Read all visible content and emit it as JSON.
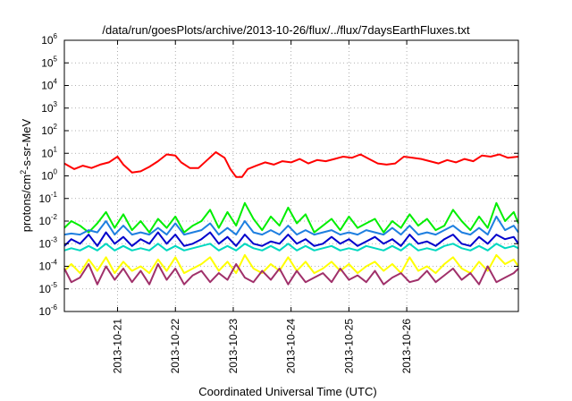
{
  "chart_data": {
    "type": "line",
    "title": "/data/run/goesPlots/archive/2013-10-26/flux/../flux/7daysEarthFluxes.txt",
    "xlabel": "Coordinated Universal Time (UTC)",
    "ylabel_parts": [
      "protons/cm",
      "2",
      "-s-sr-MeV"
    ],
    "y_scale": "log",
    "ylim": [
      -6,
      6
    ],
    "y_ticks": [
      {
        "base": "10",
        "exp": "6"
      },
      {
        "base": "10",
        "exp": "5"
      },
      {
        "base": "10",
        "exp": "4"
      },
      {
        "base": "10",
        "exp": "3"
      },
      {
        "base": "10",
        "exp": "2"
      },
      {
        "base": "10",
        "exp": "1"
      },
      {
        "base": "10",
        "exp": "0"
      },
      {
        "base": "10",
        "exp": "-1"
      },
      {
        "base": "10",
        "exp": "-2"
      },
      {
        "base": "10",
        "exp": "-3"
      },
      {
        "base": "10",
        "exp": "-4"
      },
      {
        "base": "10",
        "exp": "-5"
      },
      {
        "base": "10",
        "exp": "-6"
      }
    ],
    "x_range_days": [
      19.08,
      26.93
    ],
    "x_ticks": [
      "2013-10-21",
      "2013-10-22",
      "2013-10-23",
      "2013-10-24",
      "2013-10-25",
      "2013-10-26"
    ],
    "x_tick_days": [
      20.0,
      21.0,
      22.0,
      23.0,
      24.0,
      25.0
    ],
    "grid": true,
    "legend": "none",
    "series": [
      {
        "color": "#ff0000",
        "x_days": [
          19.08,
          19.25,
          19.4,
          19.55,
          19.7,
          19.85,
          20.0,
          20.1,
          20.25,
          20.4,
          20.55,
          20.7,
          20.85,
          21.0,
          21.1,
          21.25,
          21.4,
          21.55,
          21.7,
          21.85,
          21.95,
          22.05,
          22.15,
          22.25,
          22.4,
          22.55,
          22.7,
          22.85,
          23.0,
          23.15,
          23.3,
          23.45,
          23.6,
          23.75,
          23.9,
          24.05,
          24.2,
          24.35,
          24.5,
          24.65,
          24.8,
          24.95,
          25.1,
          25.25,
          25.4,
          25.55,
          25.7,
          25.85,
          26.0,
          26.15,
          26.3,
          26.45,
          26.6,
          26.75,
          26.93
        ],
        "log10_values": [
          0.55,
          0.3,
          0.45,
          0.35,
          0.5,
          0.6,
          0.85,
          0.5,
          0.15,
          0.2,
          0.4,
          0.65,
          0.95,
          0.9,
          0.6,
          0.35,
          0.35,
          0.7,
          1.05,
          0.8,
          0.3,
          -0.05,
          -0.05,
          0.3,
          0.45,
          0.6,
          0.5,
          0.65,
          0.6,
          0.75,
          0.55,
          0.7,
          0.65,
          0.75,
          0.85,
          0.8,
          0.95,
          0.75,
          0.55,
          0.5,
          0.55,
          0.85,
          0.8,
          0.75,
          0.65,
          0.55,
          0.7,
          0.6,
          0.75,
          0.65,
          0.9,
          0.85,
          0.95,
          0.8,
          0.85
        ]
      },
      {
        "color": "#00ee00",
        "x_days": [
          19.08,
          19.2,
          19.35,
          19.5,
          19.65,
          19.8,
          19.95,
          20.1,
          20.25,
          20.4,
          20.55,
          20.7,
          20.85,
          21.0,
          21.15,
          21.3,
          21.45,
          21.6,
          21.75,
          21.9,
          22.05,
          22.2,
          22.35,
          22.5,
          22.65,
          22.8,
          22.95,
          23.1,
          23.25,
          23.4,
          23.55,
          23.7,
          23.85,
          24.0,
          24.15,
          24.3,
          24.45,
          24.6,
          24.75,
          24.9,
          25.05,
          25.2,
          25.35,
          25.5,
          25.65,
          25.8,
          25.95,
          26.1,
          26.25,
          26.4,
          26.55,
          26.7,
          26.85,
          26.93
        ],
        "log10_values": [
          -2.3,
          -2.0,
          -2.2,
          -2.5,
          -2.1,
          -1.6,
          -2.3,
          -1.7,
          -2.4,
          -2.0,
          -2.5,
          -1.9,
          -2.3,
          -1.8,
          -2.5,
          -2.2,
          -2.0,
          -1.5,
          -2.3,
          -1.6,
          -2.2,
          -1.2,
          -1.9,
          -2.4,
          -1.8,
          -2.2,
          -1.4,
          -2.1,
          -1.7,
          -2.5,
          -2.2,
          -1.9,
          -2.4,
          -1.8,
          -2.3,
          -2.1,
          -1.9,
          -2.5,
          -2.0,
          -2.3,
          -1.7,
          -2.2,
          -1.9,
          -2.4,
          -2.2,
          -1.5,
          -2.0,
          -2.4,
          -1.8,
          -2.3,
          -1.2,
          -2.0,
          -1.6,
          -2.1
        ]
      },
      {
        "color": "#1e7fe0",
        "x_days": [
          19.08,
          19.2,
          19.35,
          19.5,
          19.65,
          19.8,
          19.95,
          20.1,
          20.25,
          20.4,
          20.55,
          20.7,
          20.85,
          21.0,
          21.15,
          21.3,
          21.45,
          21.6,
          21.75,
          21.9,
          22.05,
          22.2,
          22.35,
          22.5,
          22.65,
          22.8,
          22.95,
          23.1,
          23.25,
          23.4,
          23.55,
          23.7,
          23.85,
          24.0,
          24.15,
          24.3,
          24.45,
          24.6,
          24.75,
          24.9,
          25.05,
          25.2,
          25.35,
          25.5,
          25.65,
          25.8,
          25.95,
          26.1,
          26.25,
          26.4,
          26.55,
          26.7,
          26.85,
          26.93
        ],
        "log10_values": [
          -2.6,
          -2.55,
          -2.6,
          -2.4,
          -2.5,
          -2.0,
          -2.6,
          -2.2,
          -2.6,
          -2.5,
          -2.6,
          -2.3,
          -2.6,
          -2.1,
          -2.6,
          -2.5,
          -2.4,
          -2.1,
          -2.6,
          -2.3,
          -2.6,
          -2.0,
          -2.5,
          -2.6,
          -2.4,
          -2.6,
          -2.2,
          -2.6,
          -2.4,
          -2.6,
          -2.5,
          -2.4,
          -2.6,
          -2.5,
          -2.6,
          -2.4,
          -2.5,
          -2.6,
          -2.3,
          -2.6,
          -2.2,
          -2.6,
          -2.5,
          -2.6,
          -2.4,
          -2.2,
          -2.5,
          -2.6,
          -2.3,
          -2.6,
          -1.8,
          -2.4,
          -2.2,
          -2.5
        ]
      },
      {
        "color": "#0000cc",
        "x_days": [
          19.08,
          19.2,
          19.35,
          19.5,
          19.65,
          19.8,
          19.95,
          20.1,
          20.25,
          20.4,
          20.55,
          20.7,
          20.85,
          21.0,
          21.15,
          21.3,
          21.45,
          21.6,
          21.75,
          21.9,
          22.05,
          22.2,
          22.35,
          22.5,
          22.65,
          22.8,
          22.95,
          23.1,
          23.25,
          23.4,
          23.55,
          23.7,
          23.85,
          24.0,
          24.15,
          24.3,
          24.45,
          24.6,
          24.75,
          24.9,
          25.05,
          25.2,
          25.35,
          25.5,
          25.65,
          25.8,
          25.95,
          26.1,
          26.25,
          26.4,
          26.55,
          26.7,
          26.85,
          26.93
        ],
        "log10_values": [
          -3.1,
          -2.8,
          -3.0,
          -2.6,
          -3.1,
          -2.5,
          -3.0,
          -2.7,
          -3.1,
          -2.8,
          -3.0,
          -2.5,
          -3.0,
          -2.6,
          -3.1,
          -3.0,
          -2.8,
          -2.5,
          -3.0,
          -2.7,
          -3.1,
          -2.6,
          -3.0,
          -3.1,
          -2.9,
          -3.0,
          -2.6,
          -3.0,
          -2.8,
          -3.1,
          -3.0,
          -2.7,
          -3.0,
          -2.8,
          -3.1,
          -2.9,
          -2.7,
          -3.0,
          -2.8,
          -3.1,
          -2.6,
          -3.0,
          -2.9,
          -3.1,
          -2.8,
          -2.6,
          -3.0,
          -3.1,
          -2.7,
          -3.0,
          -2.6,
          -2.8,
          -2.7,
          -3.0
        ]
      },
      {
        "color": "#00d8c0",
        "x_days": [
          19.08,
          19.2,
          19.35,
          19.5,
          19.65,
          19.8,
          19.95,
          20.1,
          20.25,
          20.4,
          20.55,
          20.7,
          20.85,
          21.0,
          21.15,
          21.3,
          21.45,
          21.6,
          21.75,
          21.9,
          22.05,
          22.2,
          22.35,
          22.5,
          22.65,
          22.8,
          22.95,
          23.1,
          23.25,
          23.4,
          23.55,
          23.7,
          23.85,
          24.0,
          24.15,
          24.3,
          24.45,
          24.6,
          24.75,
          24.9,
          25.05,
          25.2,
          25.35,
          25.5,
          25.65,
          25.8,
          25.95,
          26.1,
          26.25,
          26.4,
          26.55,
          26.7,
          26.85,
          26.93
        ],
        "log10_values": [
          -3.3,
          -3.2,
          -3.3,
          -3.1,
          -3.3,
          -3.0,
          -3.3,
          -3.1,
          -3.3,
          -3.2,
          -3.3,
          -3.0,
          -3.3,
          -3.1,
          -3.3,
          -3.2,
          -3.1,
          -3.0,
          -3.3,
          -3.1,
          -3.3,
          -3.0,
          -3.2,
          -3.3,
          -3.1,
          -3.3,
          -3.0,
          -3.3,
          -3.1,
          -3.3,
          -3.2,
          -3.1,
          -3.3,
          -3.2,
          -3.3,
          -3.1,
          -3.2,
          -3.3,
          -3.1,
          -3.3,
          -3.0,
          -3.3,
          -3.2,
          -3.3,
          -3.1,
          -3.0,
          -3.2,
          -3.3,
          -3.1,
          -3.3,
          -3.0,
          -3.2,
          -3.1,
          -3.2
        ]
      },
      {
        "color": "#ffff00",
        "x_days": [
          19.08,
          19.2,
          19.35,
          19.5,
          19.65,
          19.8,
          19.95,
          20.1,
          20.25,
          20.4,
          20.55,
          20.7,
          20.85,
          21.0,
          21.15,
          21.3,
          21.45,
          21.6,
          21.75,
          21.9,
          22.05,
          22.2,
          22.35,
          22.5,
          22.65,
          22.8,
          22.95,
          23.1,
          23.25,
          23.4,
          23.55,
          23.7,
          23.85,
          24.0,
          24.15,
          24.3,
          24.45,
          24.6,
          24.75,
          24.9,
          25.05,
          25.2,
          25.35,
          25.5,
          25.65,
          25.8,
          25.95,
          26.1,
          26.25,
          26.4,
          26.55,
          26.7,
          26.85,
          26.93
        ],
        "log10_values": [
          -4.2,
          -3.9,
          -4.3,
          -3.7,
          -4.2,
          -3.6,
          -4.3,
          -3.8,
          -4.2,
          -4.0,
          -4.3,
          -3.7,
          -4.2,
          -3.6,
          -4.3,
          -4.1,
          -3.9,
          -3.6,
          -4.2,
          -3.8,
          -4.3,
          -3.5,
          -4.1,
          -4.3,
          -3.9,
          -4.2,
          -3.6,
          -4.2,
          -3.8,
          -4.3,
          -4.1,
          -3.8,
          -4.2,
          -3.9,
          -4.3,
          -4.0,
          -3.8,
          -4.2,
          -3.9,
          -4.3,
          -3.6,
          -4.2,
          -4.0,
          -4.3,
          -3.9,
          -3.6,
          -4.1,
          -4.3,
          -3.8,
          -4.2,
          -3.5,
          -3.9,
          -3.7,
          -4.0
        ]
      },
      {
        "color": "#a0306a",
        "x_days": [
          19.08,
          19.2,
          19.35,
          19.5,
          19.65,
          19.8,
          19.95,
          20.1,
          20.25,
          20.4,
          20.55,
          20.7,
          20.85,
          21.0,
          21.15,
          21.3,
          21.45,
          21.6,
          21.75,
          21.9,
          22.05,
          22.2,
          22.35,
          22.5,
          22.65,
          22.8,
          22.95,
          23.1,
          23.25,
          23.4,
          23.55,
          23.7,
          23.85,
          24.0,
          24.15,
          24.3,
          24.45,
          24.6,
          24.75,
          24.9,
          25.05,
          25.2,
          25.35,
          25.5,
          25.65,
          25.8,
          25.95,
          26.1,
          26.25,
          26.4,
          26.55,
          26.7,
          26.85,
          26.93
        ],
        "log10_values": [
          -4.1,
          -4.7,
          -4.5,
          -3.9,
          -4.8,
          -4.0,
          -4.6,
          -4.1,
          -4.7,
          -4.2,
          -4.8,
          -3.9,
          -4.6,
          -4.1,
          -4.8,
          -4.4,
          -4.2,
          -4.7,
          -4.3,
          -4.6,
          -3.9,
          -4.5,
          -4.7,
          -4.2,
          -4.6,
          -4.1,
          -4.8,
          -4.2,
          -4.7,
          -4.5,
          -4.3,
          -4.7,
          -4.1,
          -4.6,
          -4.4,
          -4.7,
          -4.2,
          -4.8,
          -4.5,
          -4.3,
          -4.7,
          -4.6,
          -4.2,
          -4.7,
          -4.4,
          -4.1,
          -4.6,
          -4.3,
          -4.8,
          -4.0,
          -4.7,
          -4.5,
          -4.3,
          -4.1
        ]
      }
    ]
  }
}
